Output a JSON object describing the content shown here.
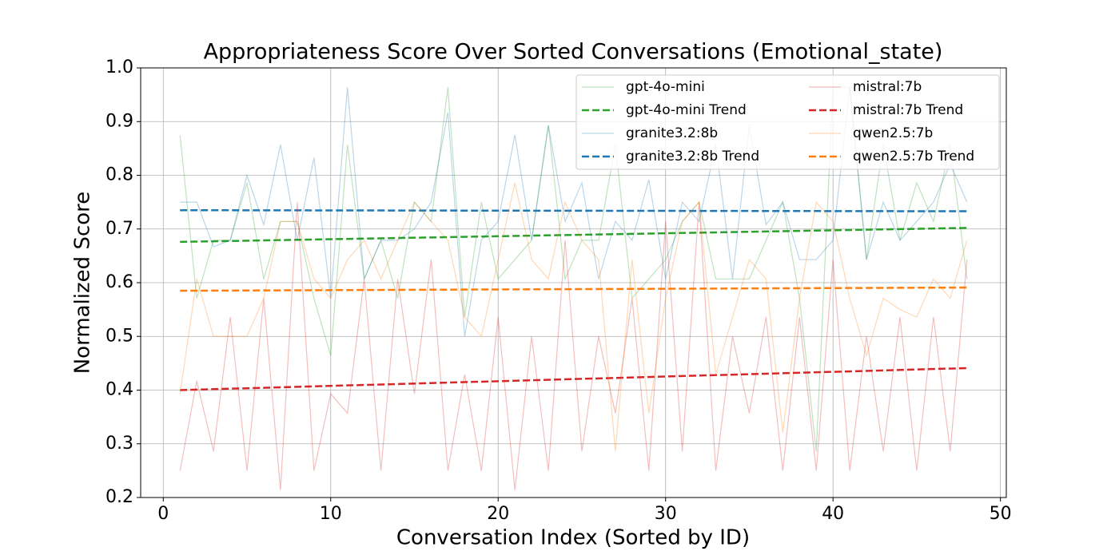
{
  "chart_data": {
    "type": "line",
    "title": "Appropriateness Score Over Sorted Conversations (Emotional_state)",
    "xlabel": "Conversation Index (Sorted by ID)",
    "ylabel": "Normalized Score",
    "x": [
      1,
      2,
      3,
      4,
      5,
      6,
      7,
      8,
      9,
      10,
      11,
      12,
      13,
      14,
      15,
      16,
      17,
      18,
      19,
      20,
      21,
      22,
      23,
      24,
      25,
      26,
      27,
      28,
      29,
      30,
      31,
      32,
      33,
      34,
      35,
      36,
      37,
      38,
      39,
      40,
      41,
      42,
      43,
      44,
      45,
      46,
      47,
      48
    ],
    "series": [
      {
        "name": "gpt-4o-mini",
        "color": "#2ca02c",
        "linestyle": "solid",
        "opacity": 0.3,
        "values": [
          0.875,
          0.571,
          0.679,
          0.679,
          0.786,
          0.607,
          0.714,
          0.714,
          0.571,
          0.464,
          0.857,
          0.607,
          0.679,
          0.571,
          0.75,
          0.714,
          0.964,
          0.536,
          0.75,
          0.607,
          0.643,
          0.679,
          0.893,
          0.607,
          0.679,
          0.679,
          0.857,
          0.571,
          0.607,
          0.643,
          0.714,
          0.75,
          0.607,
          0.607,
          0.607,
          0.679,
          0.75,
          0.571,
          0.286,
          0.964,
          0.964,
          0.643,
          0.857,
          0.679,
          0.786,
          0.714,
          0.857,
          0.607
        ]
      },
      {
        "name": "gpt-4o-mini Trend",
        "color": "#2ca02c",
        "linestyle": "dashed",
        "opacity": 1,
        "x": [
          1,
          48
        ],
        "values": [
          0.676,
          0.702
        ]
      },
      {
        "name": "granite3.2:8b",
        "color": "#1f77b4",
        "linestyle": "solid",
        "opacity": 0.3,
        "values": [
          0.75,
          0.75,
          0.667,
          0.679,
          0.8,
          0.708,
          0.857,
          0.679,
          0.833,
          0.571,
          0.964,
          0.607,
          0.679,
          0.679,
          0.7,
          0.75,
          0.917,
          0.5,
          0.679,
          0.714,
          0.875,
          0.679,
          0.893,
          0.714,
          0.786,
          0.607,
          0.714,
          0.679,
          0.792,
          0.607,
          0.75,
          0.714,
          0.857,
          0.607,
          0.893,
          0.708,
          0.75,
          0.643,
          0.643,
          0.679,
          0.964,
          0.643,
          0.75,
          0.679,
          0.714,
          0.75,
          0.821,
          0.75
        ]
      },
      {
        "name": "granite3.2:8b Trend",
        "color": "#1f77b4",
        "linestyle": "dashed",
        "opacity": 1,
        "x": [
          1,
          48
        ],
        "values": [
          0.735,
          0.733
        ]
      },
      {
        "name": "mistral:7b",
        "color": "#d62728",
        "linestyle": "solid",
        "opacity": 0.3,
        "values": [
          0.25,
          0.417,
          0.286,
          0.536,
          0.25,
          0.571,
          0.214,
          0.75,
          0.25,
          0.393,
          0.357,
          0.607,
          0.25,
          0.607,
          0.393,
          0.643,
          0.25,
          0.429,
          0.25,
          0.536,
          0.214,
          0.5,
          0.25,
          0.679,
          0.286,
          0.5,
          0.357,
          0.571,
          0.25,
          0.714,
          0.286,
          0.75,
          0.25,
          0.5,
          0.357,
          0.536,
          0.25,
          0.536,
          0.25,
          0.643,
          0.25,
          0.5,
          0.286,
          0.536,
          0.25,
          0.536,
          0.286,
          0.643
        ]
      },
      {
        "name": "mistral:7b Trend",
        "color": "#d62728",
        "linestyle": "dashed",
        "opacity": 1,
        "x": [
          1,
          48
        ],
        "values": [
          0.4,
          0.441
        ]
      },
      {
        "name": "qwen2.5:7b",
        "color": "#ff7f0e",
        "linestyle": "solid",
        "opacity": 0.3,
        "values": [
          0.393,
          0.607,
          0.5,
          0.5,
          0.5,
          0.571,
          0.714,
          0.714,
          0.607,
          0.571,
          0.643,
          0.679,
          0.607,
          0.679,
          0.75,
          0.714,
          0.679,
          0.536,
          0.5,
          0.643,
          0.786,
          0.643,
          0.607,
          0.75,
          0.679,
          0.643,
          0.286,
          0.643,
          0.357,
          0.571,
          0.714,
          0.75,
          0.429,
          0.536,
          0.643,
          0.607,
          0.321,
          0.571,
          0.75,
          0.714,
          0.571,
          0.464,
          0.571,
          0.55,
          0.536,
          0.607,
          0.571,
          0.679
        ]
      },
      {
        "name": "qwen2.5:7b Trend",
        "color": "#ff7f0e",
        "linestyle": "dashed",
        "opacity": 1,
        "x": [
          1,
          48
        ],
        "values": [
          0.585,
          0.591
        ]
      }
    ],
    "xlim": [
      -1.35,
      50.35
    ],
    "xticks": [
      0,
      10,
      20,
      30,
      40,
      50
    ],
    "ylim": [
      0.2,
      1.0
    ],
    "yticks": [
      0.2,
      0.3,
      0.4,
      0.5,
      0.6,
      0.7,
      0.8,
      0.9,
      {
        "value": 1,
        "label": "1.0"
      }
    ],
    "grid": true,
    "legend": "upper right",
    "legend_columns": 2
  }
}
